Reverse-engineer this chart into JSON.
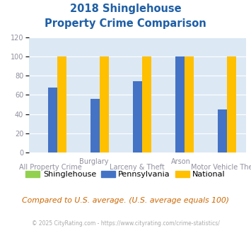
{
  "title_line1": "2018 Shinglehouse",
  "title_line2": "Property Crime Comparison",
  "groups": [
    "All Property Crime",
    "Burglary",
    "Larceny & Theft",
    "Arson",
    "Motor Vehicle Theft"
  ],
  "top_labels": [
    "",
    "Burglary",
    "",
    "Arson",
    ""
  ],
  "bottom_labels": [
    "All Property Crime",
    "",
    "Larceny & Theft",
    "",
    "Motor Vehicle Theft"
  ],
  "shinglehouse": [
    0,
    0,
    0,
    0,
    0
  ],
  "pennsylvania": [
    68,
    56,
    74,
    100,
    45
  ],
  "national": [
    100,
    100,
    100,
    100,
    100
  ],
  "color_shinglehouse": "#92d050",
  "color_pennsylvania": "#4472c4",
  "color_national": "#ffc000",
  "ylim": [
    0,
    120
  ],
  "yticks": [
    0,
    20,
    40,
    60,
    80,
    100,
    120
  ],
  "background_color": "#dce9f5",
  "title_color": "#1f5fa6",
  "label_color": "#9090a0",
  "footer_text": "Compared to U.S. average. (U.S. average equals 100)",
  "copyright_text": "© 2025 CityRating.com - https://www.cityrating.com/crime-statistics/",
  "footer_color": "#cc6600",
  "copyright_color": "#aaaaaa",
  "bar_width": 0.22
}
